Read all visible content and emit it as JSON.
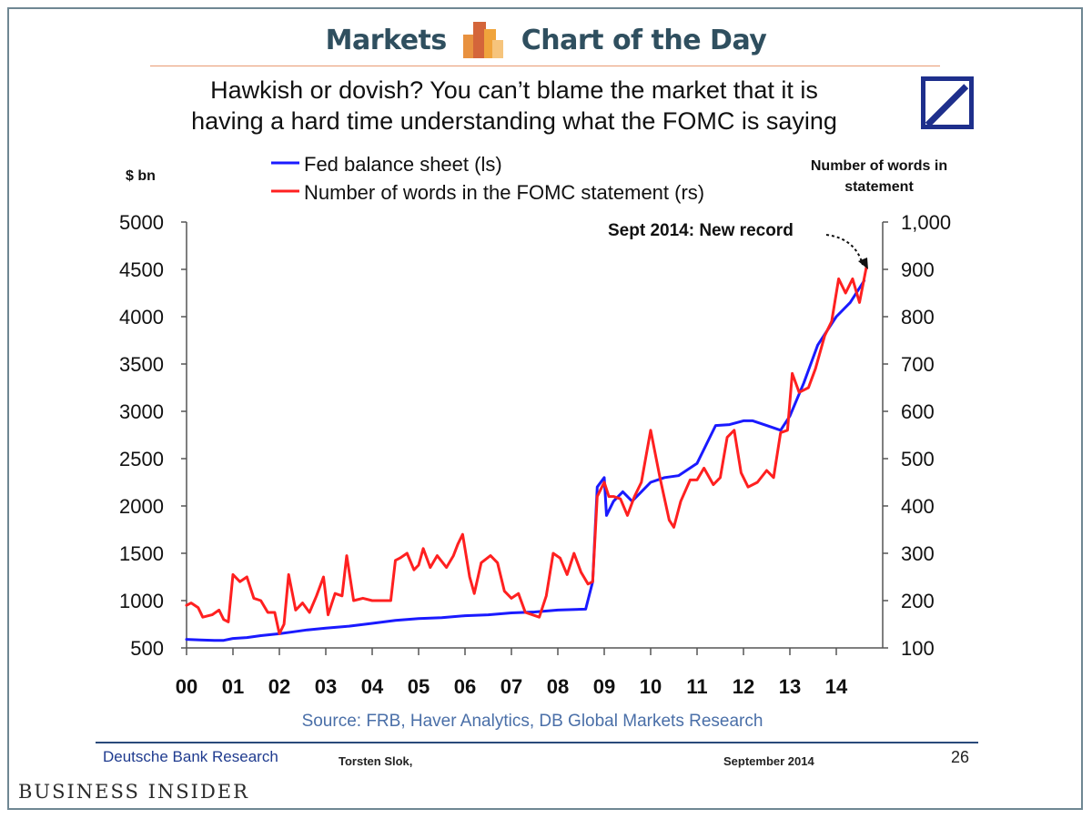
{
  "header": {
    "left": "Markets",
    "right": "Chart of the Day"
  },
  "slide": {
    "title_line1": "Hawkish or dovish? You can’t blame the market that it is",
    "title_line2": "having a hard time understanding what the FOMC is saying",
    "source": "Source: FRB, Haver Analytics, DB Global Markets Research",
    "footer_org": "Deutsche Bank Research",
    "footer_author": "Torsten Slok,",
    "footer_date": "September 2014",
    "footer_page": "26"
  },
  "branding": {
    "publisher": "Business Insider"
  },
  "colors": {
    "fed_line": "#1a1aff",
    "words_line": "#ff2020",
    "header_text": "#2f4f5f",
    "db_blue": "#1e2f8c"
  },
  "chart_data": {
    "type": "line",
    "title": "Hawkish or dovish? You can’t blame the market that it is having a hard time understanding what the FOMC is saying",
    "ylabel_left": "$ bn",
    "ylabel_right_line1": "Number of words in",
    "ylabel_right_line2": "statement",
    "annotation": "Sept 2014: New record",
    "x_ticks": [
      "00",
      "01",
      "02",
      "03",
      "04",
      "05",
      "06",
      "07",
      "08",
      "09",
      "10",
      "11",
      "12",
      "13",
      "14"
    ],
    "xlim": [
      0,
      14.75
    ],
    "ylim_left": [
      500,
      5000
    ],
    "ylim_right": [
      100,
      1000
    ],
    "left_ticks": [
      "5000",
      "4500",
      "4000",
      "3500",
      "3000",
      "2500",
      "2000",
      "1500",
      "1000",
      "500"
    ],
    "right_ticks": [
      "1,000",
      "900",
      "800",
      "700",
      "600",
      "500",
      "400",
      "300",
      "200",
      "100"
    ],
    "series": [
      {
        "name": "Fed balance sheet (ls)",
        "axis": "left",
        "color": "#1a1aff",
        "points": [
          [
            0,
            590
          ],
          [
            0.3,
            585
          ],
          [
            0.6,
            580
          ],
          [
            0.8,
            580
          ],
          [
            1.0,
            600
          ],
          [
            1.3,
            610
          ],
          [
            1.6,
            630
          ],
          [
            2.0,
            650
          ],
          [
            2.3,
            670
          ],
          [
            2.6,
            690
          ],
          [
            3.0,
            710
          ],
          [
            3.5,
            730
          ],
          [
            4.0,
            760
          ],
          [
            4.5,
            790
          ],
          [
            5.0,
            810
          ],
          [
            5.5,
            820
          ],
          [
            6.0,
            840
          ],
          [
            6.5,
            850
          ],
          [
            7.0,
            870
          ],
          [
            7.5,
            880
          ],
          [
            8.0,
            900
          ],
          [
            8.6,
            910
          ],
          [
            8.75,
            1200
          ],
          [
            8.85,
            2200
          ],
          [
            9.0,
            2300
          ],
          [
            9.05,
            1900
          ],
          [
            9.2,
            2050
          ],
          [
            9.4,
            2150
          ],
          [
            9.6,
            2050
          ],
          [
            9.8,
            2150
          ],
          [
            10.0,
            2250
          ],
          [
            10.3,
            2300
          ],
          [
            10.6,
            2320
          ],
          [
            11.0,
            2450
          ],
          [
            11.2,
            2650
          ],
          [
            11.4,
            2850
          ],
          [
            11.7,
            2860
          ],
          [
            12.0,
            2900
          ],
          [
            12.2,
            2900
          ],
          [
            12.5,
            2850
          ],
          [
            12.8,
            2800
          ],
          [
            13.0,
            2950
          ],
          [
            13.3,
            3300
          ],
          [
            13.6,
            3700
          ],
          [
            14.0,
            4000
          ],
          [
            14.3,
            4150
          ],
          [
            14.6,
            4380
          ]
        ]
      },
      {
        "name": "Number of words in the FOMC statement (rs)",
        "axis": "right",
        "color": "#ff2020",
        "points": [
          [
            0,
            190
          ],
          [
            0.1,
            195
          ],
          [
            0.25,
            185
          ],
          [
            0.35,
            165
          ],
          [
            0.55,
            170
          ],
          [
            0.7,
            180
          ],
          [
            0.8,
            160
          ],
          [
            0.9,
            155
          ],
          [
            1.0,
            255
          ],
          [
            1.15,
            240
          ],
          [
            1.3,
            250
          ],
          [
            1.45,
            205
          ],
          [
            1.6,
            200
          ],
          [
            1.75,
            175
          ],
          [
            1.9,
            175
          ],
          [
            2.0,
            130
          ],
          [
            2.1,
            150
          ],
          [
            2.2,
            255
          ],
          [
            2.35,
            180
          ],
          [
            2.5,
            195
          ],
          [
            2.65,
            175
          ],
          [
            2.8,
            210
          ],
          [
            2.95,
            250
          ],
          [
            3.05,
            170
          ],
          [
            3.2,
            215
          ],
          [
            3.35,
            210
          ],
          [
            3.45,
            295
          ],
          [
            3.6,
            200
          ],
          [
            3.8,
            205
          ],
          [
            4.0,
            200
          ],
          [
            4.2,
            200
          ],
          [
            4.4,
            200
          ],
          [
            4.5,
            285
          ],
          [
            4.6,
            290
          ],
          [
            4.75,
            300
          ],
          [
            4.9,
            265
          ],
          [
            5.0,
            275
          ],
          [
            5.1,
            310
          ],
          [
            5.25,
            270
          ],
          [
            5.4,
            295
          ],
          [
            5.6,
            270
          ],
          [
            5.75,
            295
          ],
          [
            5.85,
            320
          ],
          [
            5.95,
            340
          ],
          [
            6.1,
            250
          ],
          [
            6.2,
            215
          ],
          [
            6.35,
            280
          ],
          [
            6.55,
            295
          ],
          [
            6.7,
            280
          ],
          [
            6.85,
            220
          ],
          [
            7.0,
            205
          ],
          [
            7.15,
            215
          ],
          [
            7.3,
            175
          ],
          [
            7.45,
            170
          ],
          [
            7.6,
            165
          ],
          [
            7.75,
            210
          ],
          [
            7.9,
            300
          ],
          [
            8.05,
            290
          ],
          [
            8.2,
            255
          ],
          [
            8.35,
            300
          ],
          [
            8.5,
            260
          ],
          [
            8.65,
            235
          ],
          [
            8.75,
            240
          ],
          [
            8.85,
            420
          ],
          [
            9.0,
            450
          ],
          [
            9.1,
            420
          ],
          [
            9.2,
            420
          ],
          [
            9.35,
            415
          ],
          [
            9.5,
            380
          ],
          [
            9.65,
            420
          ],
          [
            9.8,
            450
          ],
          [
            10.0,
            560
          ],
          [
            10.2,
            460
          ],
          [
            10.4,
            370
          ],
          [
            10.5,
            355
          ],
          [
            10.65,
            410
          ],
          [
            10.85,
            455
          ],
          [
            11.0,
            455
          ],
          [
            11.15,
            480
          ],
          [
            11.35,
            445
          ],
          [
            11.5,
            460
          ],
          [
            11.65,
            545
          ],
          [
            11.8,
            560
          ],
          [
            11.95,
            470
          ],
          [
            12.1,
            440
          ],
          [
            12.3,
            450
          ],
          [
            12.5,
            475
          ],
          [
            12.65,
            460
          ],
          [
            12.8,
            555
          ],
          [
            12.95,
            560
          ],
          [
            13.05,
            680
          ],
          [
            13.2,
            640
          ],
          [
            13.4,
            650
          ],
          [
            13.55,
            690
          ],
          [
            13.75,
            760
          ],
          [
            13.9,
            790
          ],
          [
            14.05,
            880
          ],
          [
            14.2,
            850
          ],
          [
            14.35,
            880
          ],
          [
            14.5,
            830
          ],
          [
            14.65,
            905
          ]
        ]
      }
    ]
  }
}
